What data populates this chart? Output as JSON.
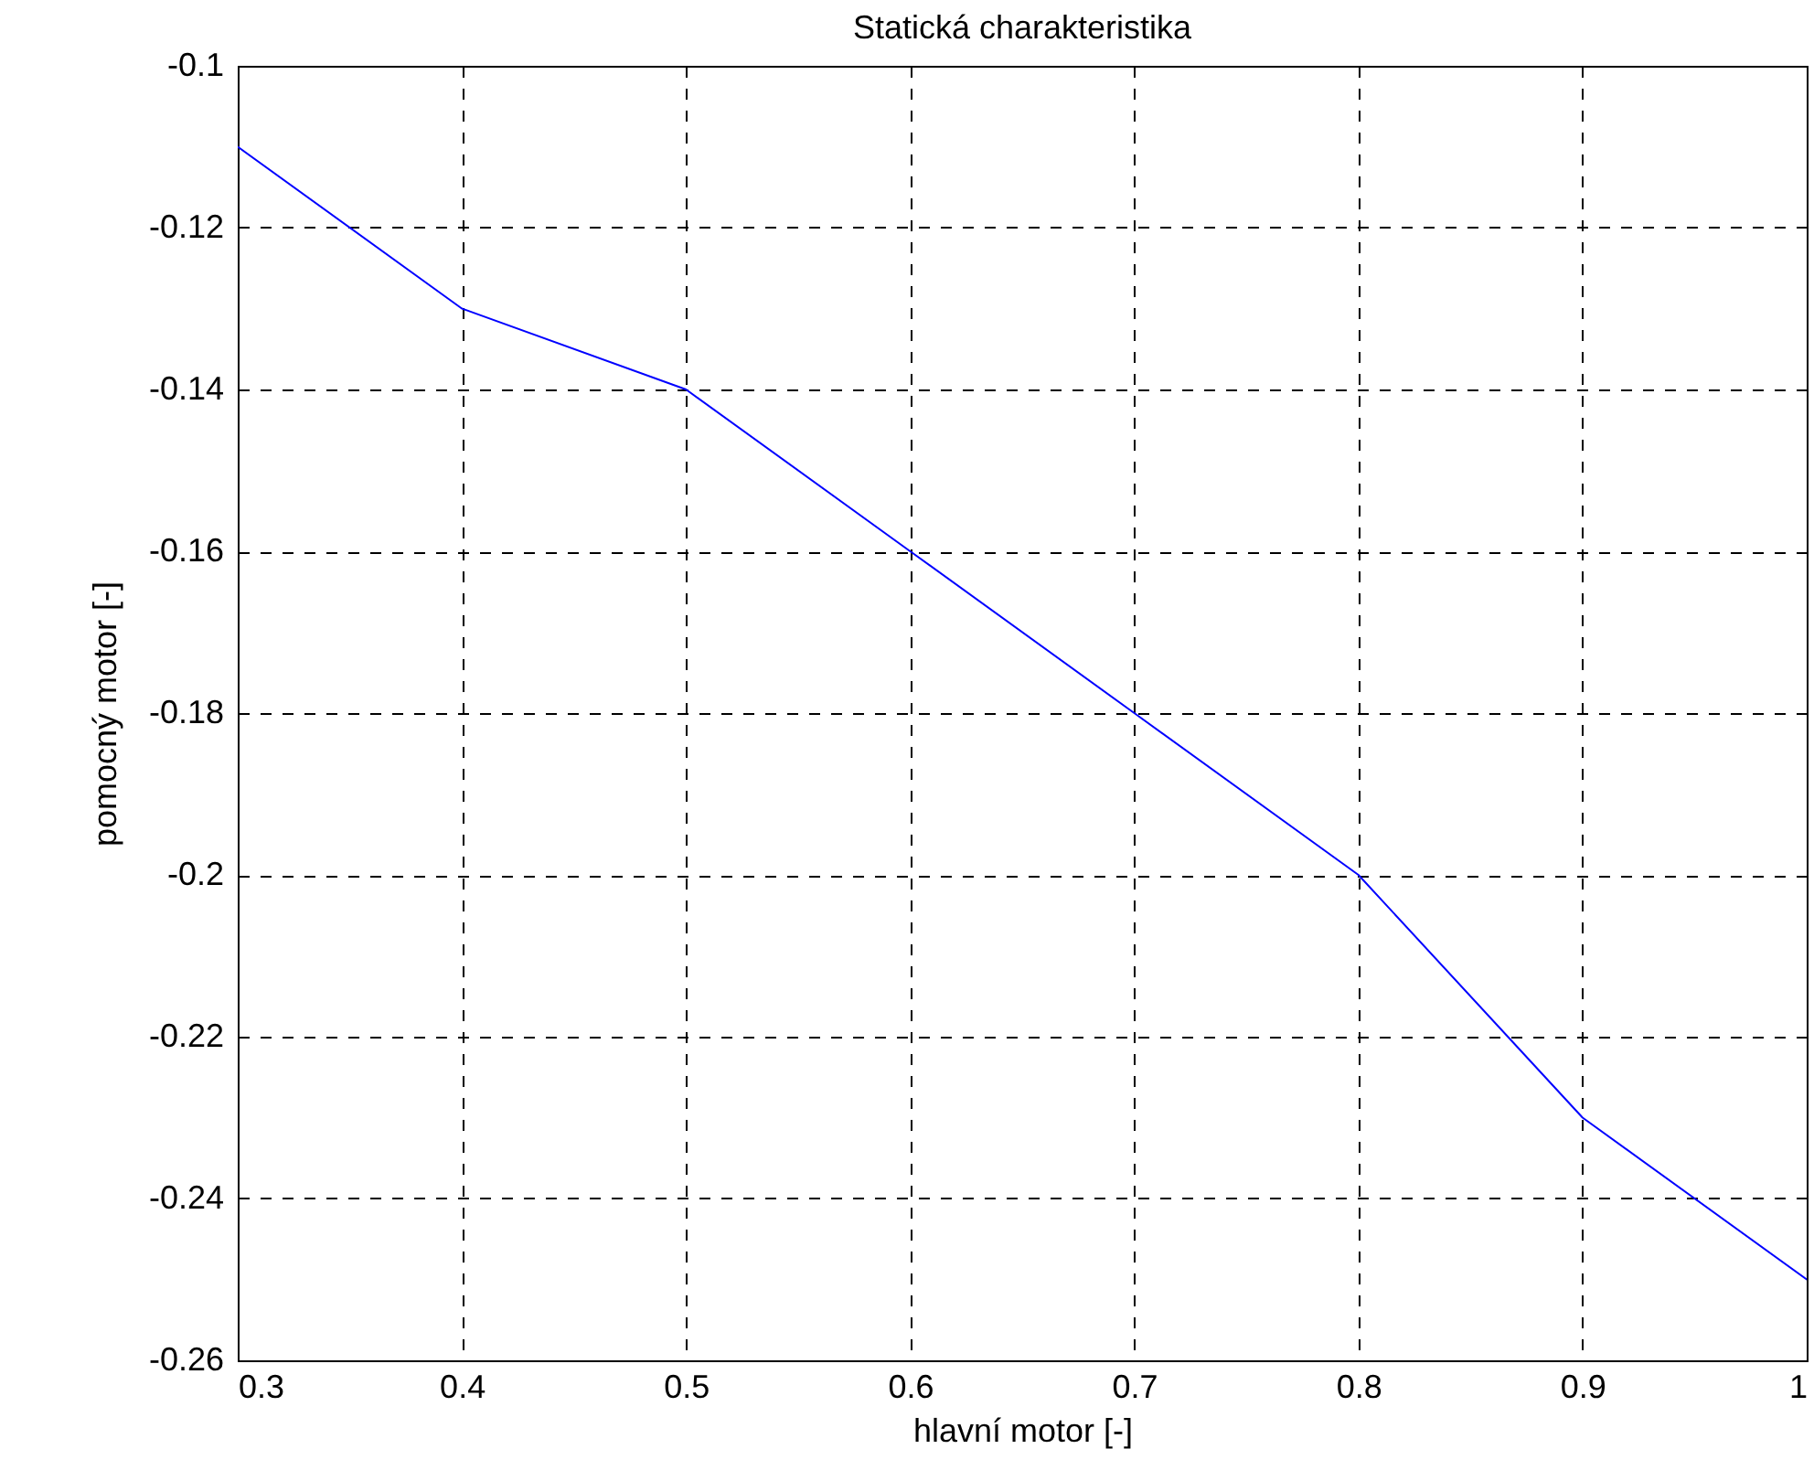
{
  "chart_data": {
    "type": "line",
    "title": "Statická charakteristika",
    "xlabel": "hlavní motor [-]",
    "ylabel": "pomocný motor [-]",
    "x": [
      0.3,
      0.4,
      0.5,
      0.6,
      0.7,
      0.8,
      0.9,
      1
    ],
    "series": [
      {
        "color": "#0000ff",
        "values": [
          -0.11,
          -0.13,
          -0.14,
          -0.16,
          -0.18,
          -0.2,
          -0.23,
          -0.25
        ]
      }
    ],
    "xlim": [
      0.3,
      1
    ],
    "ylim": [
      -0.26,
      -0.1
    ],
    "xticks": [
      0.3,
      0.4,
      0.5,
      0.6,
      0.7,
      0.8,
      0.9,
      1
    ],
    "yticks": [
      -0.26,
      -0.24,
      -0.22,
      -0.2,
      -0.18,
      -0.16,
      -0.14,
      -0.12,
      -0.1
    ],
    "grid": true,
    "line_style": "solid"
  }
}
